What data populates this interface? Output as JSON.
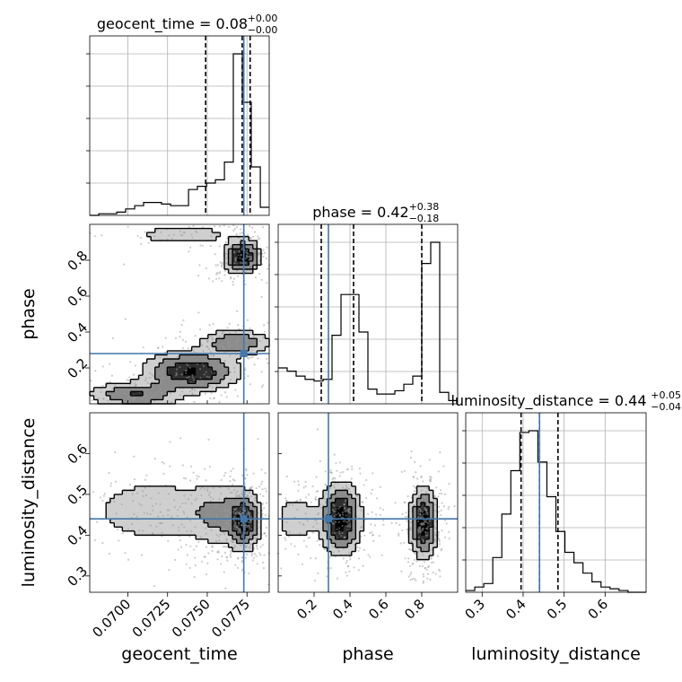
{
  "chart_data": {
    "type": "corner",
    "parameters": [
      "geocent_time",
      "phase",
      "luminosity_distance"
    ],
    "truths": [
      0.0773,
      0.28,
      0.44
    ],
    "ranges": [
      [
        0.0676,
        0.0789
      ],
      [
        0.0,
        1.0
      ],
      [
        0.26,
        0.7
      ]
    ],
    "grid": true,
    "truth_color": "#4477aa",
    "ticks": {
      "geocent_time": [
        "0.0700",
        "0.0725",
        "0.0750",
        "0.0775"
      ],
      "phase": [
        "0.2",
        "0.4",
        "0.6",
        "0.8"
      ],
      "luminosity_distance": [
        "0.3",
        "0.4",
        "0.5",
        "0.6"
      ]
    },
    "titles": [
      {
        "label": "geocent_time = 0.08",
        "sup": "+0.00",
        "sub": "−0.00"
      },
      {
        "label": "phase = 0.42",
        "sup": "+0.38",
        "sub": "−0.18"
      },
      {
        "label": "luminosity_distance = 0.44",
        "sup": "+0.05",
        "sub": "−0.04"
      }
    ],
    "quantiles": {
      "geocent_time": [
        0.0749,
        0.0772,
        0.0777
      ],
      "phase": [
        0.24,
        0.42,
        0.8
      ],
      "luminosity_distance": [
        0.395,
        0.44,
        0.485
      ]
    },
    "histograms": {
      "geocent_time": {
        "edges": [
          0.0676,
          0.06817,
          0.06873,
          0.0693,
          0.06986,
          0.07043,
          0.07099,
          0.07156,
          0.07212,
          0.07269,
          0.07325,
          0.07382,
          0.07438,
          0.07495,
          0.07551,
          0.07608,
          0.07664,
          0.07721,
          0.07777,
          0.07834,
          0.0789
        ],
        "counts": [
          0,
          1,
          1,
          2,
          4,
          6,
          8,
          8,
          7,
          6,
          6,
          16,
          18,
          20,
          22,
          33,
          100,
          70,
          30,
          5
        ]
      },
      "phase": {
        "edges": [
          0.0,
          0.05,
          0.1,
          0.15,
          0.2,
          0.25,
          0.3,
          0.35,
          0.4,
          0.45,
          0.5,
          0.55,
          0.6,
          0.65,
          0.7,
          0.75,
          0.8,
          0.85,
          0.9,
          0.95,
          1.0
        ],
        "counts": [
          22,
          20,
          17,
          15,
          14,
          15,
          42,
          67,
          67,
          44,
          9,
          6,
          6,
          8,
          12,
          17,
          86,
          99,
          7,
          2
        ]
      },
      "luminosity_distance": {
        "edges": [
          0.26,
          0.282,
          0.304,
          0.326,
          0.348,
          0.37,
          0.392,
          0.414,
          0.436,
          0.458,
          0.48,
          0.502,
          0.524,
          0.546,
          0.568,
          0.59,
          0.612,
          0.634,
          0.656,
          0.678,
          0.7
        ],
        "counts": [
          1,
          3,
          5,
          20,
          45,
          70,
          92,
          93,
          75,
          55,
          35,
          23,
          17,
          11,
          6,
          3,
          2,
          1,
          0,
          0
        ]
      }
    },
    "clusters": {
      "geocent_time|phase": [
        {
          "x": 0.0772,
          "y": 0.82,
          "sx": 0.0006,
          "sy": 0.05,
          "w": 0.22
        },
        {
          "x": 0.0768,
          "y": 0.34,
          "sx": 0.0012,
          "sy": 0.04,
          "w": 0.12
        },
        {
          "x": 0.074,
          "y": 0.18,
          "sx": 0.0016,
          "sy": 0.06,
          "w": 0.18
        },
        {
          "x": 0.0705,
          "y": 0.05,
          "sx": 0.0016,
          "sy": 0.04,
          "w": 0.12
        },
        {
          "x": 0.0735,
          "y": 0.94,
          "sx": 0.0018,
          "sy": 0.03,
          "w": 0.06
        }
      ],
      "geocent_time|luminosity_distance": [
        {
          "x": 0.0773,
          "y": 0.43,
          "sx": 0.0005,
          "sy": 0.035,
          "w": 0.55
        },
        {
          "x": 0.076,
          "y": 0.45,
          "sx": 0.0014,
          "sy": 0.045,
          "w": 0.25
        },
        {
          "x": 0.0715,
          "y": 0.46,
          "sx": 0.0022,
          "sy": 0.045,
          "w": 0.2
        }
      ],
      "phase|luminosity_distance": [
        {
          "x": 0.35,
          "y": 0.44,
          "sx": 0.06,
          "sy": 0.045,
          "w": 0.45
        },
        {
          "x": 0.81,
          "y": 0.43,
          "sx": 0.04,
          "sy": 0.045,
          "w": 0.45
        },
        {
          "x": 0.1,
          "y": 0.44,
          "sx": 0.08,
          "sy": 0.04,
          "w": 0.1
        }
      ]
    }
  }
}
